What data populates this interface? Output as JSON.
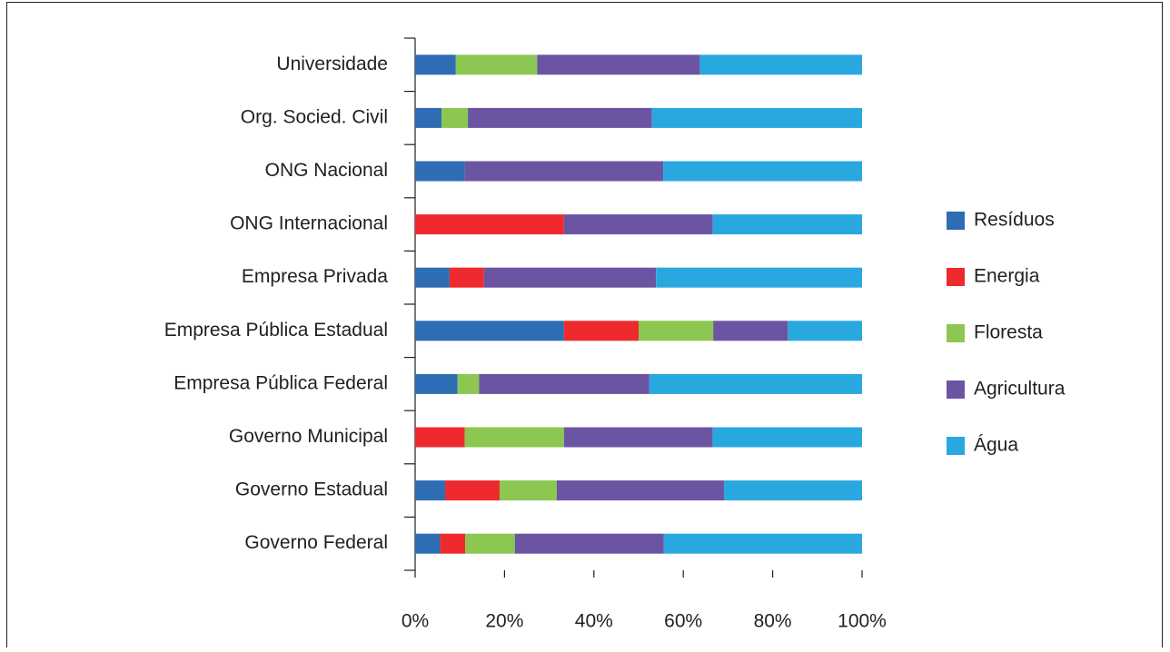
{
  "chart_data": {
    "type": "stacked_bar_horizontal",
    "categories": [
      "Universidade",
      "Org. Socied. Civil",
      "ONG Nacional",
      "ONG Internacional",
      "Empresa Privada",
      "Empresa Pública Estadual",
      "Empresa Pública Federal",
      "Governo Municipal",
      "Governo Estadual",
      "Governo Federal"
    ],
    "series": [
      {
        "name": "Resíduos",
        "color": "#2e6db4",
        "values": [
          9.1,
          5.9,
          11.1,
          0,
          7.7,
          33.3,
          9.5,
          0,
          6.7,
          5.6
        ]
      },
      {
        "name": "Energia",
        "color": "#ee2a2e",
        "values": [
          0,
          0,
          0,
          33.3,
          7.7,
          16.7,
          0,
          11.1,
          12.2,
          5.6
        ]
      },
      {
        "name": "Floresta",
        "color": "#8cc751",
        "values": [
          18.2,
          5.9,
          0,
          0,
          0,
          16.7,
          4.8,
          22.2,
          12.8,
          11.1
        ]
      },
      {
        "name": "Agricultura",
        "color": "#6b55a3",
        "values": [
          36.4,
          41.2,
          44.4,
          33.3,
          38.5,
          16.7,
          38.1,
          33.3,
          37.4,
          33.3
        ]
      },
      {
        "name": "Água",
        "color": "#29a8e0",
        "values": [
          36.3,
          47.0,
          44.5,
          33.4,
          46.1,
          16.6,
          47.6,
          33.4,
          30.9,
          44.4
        ]
      }
    ],
    "xlim": [
      0,
      100
    ],
    "xticks": [
      {
        "value": 0,
        "label": "0%"
      },
      {
        "value": 20,
        "label": "20%"
      },
      {
        "value": 40,
        "label": "40%"
      },
      {
        "value": 60,
        "label": "60%"
      },
      {
        "value": 80,
        "label": "80%"
      },
      {
        "value": 100,
        "label": "100%"
      }
    ],
    "legend": "right"
  }
}
